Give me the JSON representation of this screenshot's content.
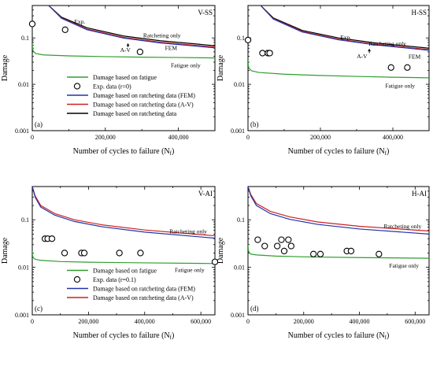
{
  "figure": {
    "panels": 4,
    "colors": {
      "fatigue": "#2e9e2e",
      "fem": "#2233aa",
      "av": "#cc2222",
      "exp_line": "#000000",
      "marker": "#000000"
    }
  },
  "chart_data": [
    {
      "id": "a",
      "type": "line",
      "title": "V-SS",
      "panel_letter": "(a)",
      "xlabel": "Number of cycles to failure (N",
      "xlabel_sub": "f",
      "xlabel_close": ")",
      "ylabel": "Damage",
      "yscale": "log",
      "xlim": [
        0,
        500000
      ],
      "ylim": [
        0.001,
        0.5
      ],
      "xticks": [
        0,
        200000,
        400000
      ],
      "xtick_labels": [
        "0",
        "200,000",
        "400,000"
      ],
      "yticks": [
        0.001,
        0.01,
        0.1
      ],
      "ytick_labels": [
        "0.001",
        "0.01",
        "0.1"
      ],
      "series": [
        {
          "key": "exp_line",
          "type": "line",
          "x": [
            45000,
            80000,
            150000,
            250000,
            350000,
            500000
          ],
          "y": [
            0.5,
            0.28,
            0.165,
            0.11,
            0.087,
            0.068
          ]
        },
        {
          "key": "av",
          "type": "line",
          "x": [
            45000,
            80000,
            150000,
            250000,
            350000,
            500000
          ],
          "y": [
            0.5,
            0.27,
            0.155,
            0.103,
            0.081,
            0.064
          ]
        },
        {
          "key": "fem",
          "type": "line",
          "x": [
            45000,
            80000,
            150000,
            250000,
            350000,
            500000
          ],
          "y": [
            0.5,
            0.265,
            0.15,
            0.099,
            0.078,
            0.061
          ]
        },
        {
          "key": "fatigue",
          "type": "line",
          "x": [
            0,
            1000,
            3000,
            10000,
            30000,
            100000,
            200000,
            300000,
            400000,
            500000
          ],
          "y": [
            0.075,
            0.058,
            0.051,
            0.046,
            0.043,
            0.041,
            0.0395,
            0.0385,
            0.0378,
            0.037
          ]
        },
        {
          "key": "exp_markers",
          "type": "scatter",
          "x": [
            0,
            90000,
            295000
          ],
          "y": [
            0.2,
            0.15,
            0.05
          ]
        }
      ],
      "annotations": [
        {
          "text": "Exp.",
          "x": 130000,
          "y": 0.23
        },
        {
          "text": "Ratcheting only",
          "x": 355000,
          "y": 0.115
        },
        {
          "text": "FEM",
          "x": 380000,
          "y": 0.062
        },
        {
          "text": "A-V",
          "x": 255000,
          "y": 0.056
        },
        {
          "text": "Fatigue only",
          "x": 420000,
          "y": 0.026
        }
      ],
      "av_arrow": {
        "x": 262000,
        "y_from": 0.063,
        "y_to": 0.076
      },
      "legend": {
        "position": "lower-left",
        "entries": [
          {
            "key": "fatigue",
            "label": "Damage based on fatigue"
          },
          {
            "key": "exp_markers",
            "label": "Exp. data (r=0)"
          },
          {
            "key": "fem",
            "label": "Damage based on ratcheting data (FEM)"
          },
          {
            "key": "av",
            "label": "Damage based on ratcheting data (A-V)"
          },
          {
            "key": "exp_line",
            "label": "Damage based on ratcheting data"
          }
        ]
      }
    },
    {
      "id": "b",
      "type": "line",
      "title": "H-SS",
      "panel_letter": "(b)",
      "xlabel": "Number of cycles to failure (N",
      "xlabel_sub": "f",
      "xlabel_close": ")",
      "ylabel": "Damage",
      "yscale": "log",
      "xlim": [
        0,
        500000
      ],
      "ylim": [
        0.001,
        0.5
      ],
      "xticks": [
        0,
        200000,
        400000
      ],
      "xtick_labels": [
        "0",
        "200,000",
        "400,000"
      ],
      "yticks": [
        0.001,
        0.01,
        0.1
      ],
      "ytick_labels": [
        "0.001",
        "0.01",
        "0.1"
      ],
      "series": [
        {
          "key": "exp_line",
          "type": "line",
          "x": [
            35000,
            70000,
            150000,
            250000,
            350000,
            500000
          ],
          "y": [
            0.5,
            0.27,
            0.145,
            0.1,
            0.078,
            0.06
          ]
        },
        {
          "key": "av",
          "type": "line",
          "x": [
            35000,
            70000,
            150000,
            250000,
            350000,
            500000
          ],
          "y": [
            0.5,
            0.26,
            0.138,
            0.094,
            0.073,
            0.056
          ]
        },
        {
          "key": "fem",
          "type": "line",
          "x": [
            35000,
            70000,
            150000,
            250000,
            350000,
            500000
          ],
          "y": [
            0.5,
            0.255,
            0.134,
            0.091,
            0.071,
            0.054
          ]
        },
        {
          "key": "fatigue",
          "type": "line",
          "x": [
            0,
            1000,
            3000,
            10000,
            30000,
            100000,
            200000,
            300000,
            400000,
            500000
          ],
          "y": [
            0.032,
            0.025,
            0.022,
            0.0195,
            0.018,
            0.0165,
            0.0155,
            0.0148,
            0.0142,
            0.0138
          ]
        },
        {
          "key": "exp_markers",
          "type": "scatter",
          "x": [
            0,
            40000,
            55000,
            60000,
            395000,
            440000
          ],
          "y": [
            0.09,
            0.047,
            0.047,
            0.047,
            0.023,
            0.023
          ]
        }
      ],
      "annotations": [
        {
          "text": "Exp.",
          "x": 270000,
          "y": 0.105
        },
        {
          "text": "Ratcheting only",
          "x": 385000,
          "y": 0.077
        },
        {
          "text": "A-V",
          "x": 315000,
          "y": 0.041
        },
        {
          "text": "FEM",
          "x": 460000,
          "y": 0.04
        },
        {
          "text": "Fatigue only",
          "x": 420000,
          "y": 0.0095
        }
      ],
      "av_arrow": {
        "x": 335000,
        "y_from": 0.047,
        "y_to": 0.058
      }
    },
    {
      "id": "c",
      "type": "line",
      "title": "V-AI",
      "panel_letter": "(c)",
      "xlabel": "Number of cycles to failure (N",
      "xlabel_sub": "f",
      "xlabel_close": ")",
      "ylabel": "Damage",
      "yscale": "log",
      "xlim": [
        0,
        650000
      ],
      "ylim": [
        0.001,
        0.5
      ],
      "xticks": [
        0,
        200000,
        400000,
        600000
      ],
      "xtick_labels": [
        "0",
        "200,000",
        "400,000",
        "600,000"
      ],
      "yticks": [
        0.001,
        0.01,
        0.1
      ],
      "ytick_labels": [
        "0.001",
        "0.01",
        "0.1"
      ],
      "series": [
        {
          "key": "av",
          "type": "line",
          "x": [
            0,
            10000,
            30000,
            80000,
            150000,
            250000,
            400000,
            650000
          ],
          "y": [
            0.5,
            0.32,
            0.2,
            0.135,
            0.1,
            0.078,
            0.061,
            0.046
          ]
        },
        {
          "key": "fem",
          "type": "line",
          "x": [
            0,
            10000,
            30000,
            80000,
            150000,
            250000,
            400000,
            650000
          ],
          "y": [
            0.5,
            0.3,
            0.185,
            0.125,
            0.092,
            0.071,
            0.055,
            0.041
          ]
        },
        {
          "key": "fatigue",
          "type": "line",
          "x": [
            0,
            1000,
            3000,
            10000,
            30000,
            100000,
            200000,
            400000,
            650000
          ],
          "y": [
            0.022,
            0.018,
            0.016,
            0.0148,
            0.014,
            0.0132,
            0.0128,
            0.0124,
            0.012
          ]
        },
        {
          "key": "exp_markers",
          "type": "scatter",
          "x": [
            45000,
            55000,
            70000,
            115000,
            175000,
            185000,
            310000,
            385000,
            650000
          ],
          "y": [
            0.04,
            0.04,
            0.04,
            0.02,
            0.02,
            0.02,
            0.02,
            0.02,
            0.013
          ]
        }
      ],
      "annotations": [
        {
          "text": "Ratcheting only",
          "x": 555000,
          "y": 0.058
        },
        {
          "text": "Fatigue only",
          "x": 560000,
          "y": 0.009
        }
      ],
      "legend": {
        "position": "lower-left",
        "entries": [
          {
            "key": "fatigue",
            "label": "Damage based on fatigue"
          },
          {
            "key": "exp_markers",
            "label": "Exp. data (r=0.1)"
          },
          {
            "key": "fem",
            "label": "Damage based on ratcheting data (FEM)"
          },
          {
            "key": "av",
            "label": "Damage based on ratcheting data (A-V)"
          }
        ]
      }
    },
    {
      "id": "d",
      "type": "line",
      "title": "H-AI",
      "panel_letter": "(d)",
      "xlabel": "Number of cycles to failure (N",
      "xlabel_sub": "f",
      "xlabel_close": ")",
      "ylabel": "Damage",
      "yscale": "log",
      "xlim": [
        0,
        650000
      ],
      "ylim": [
        0.001,
        0.5
      ],
      "xticks": [
        0,
        200000,
        400000,
        600000
      ],
      "xtick_labels": [
        "0",
        "200,000",
        "400,000",
        "600,000"
      ],
      "yticks": [
        0.001,
        0.01,
        0.1
      ],
      "ytick_labels": [
        "0.001",
        "0.01",
        "0.1"
      ],
      "series": [
        {
          "key": "av",
          "type": "line",
          "x": [
            0,
            10000,
            30000,
            80000,
            150000,
            250000,
            400000,
            650000
          ],
          "y": [
            0.5,
            0.34,
            0.22,
            0.15,
            0.115,
            0.09,
            0.073,
            0.058
          ]
        },
        {
          "key": "fem",
          "type": "line",
          "x": [
            0,
            10000,
            30000,
            80000,
            150000,
            250000,
            400000,
            650000
          ],
          "y": [
            0.5,
            0.32,
            0.2,
            0.135,
            0.102,
            0.08,
            0.064,
            0.05
          ]
        },
        {
          "key": "fatigue",
          "type": "line",
          "x": [
            0,
            1000,
            3000,
            10000,
            30000,
            100000,
            200000,
            400000,
            650000
          ],
          "y": [
            0.03,
            0.024,
            0.021,
            0.019,
            0.0182,
            0.0172,
            0.0166,
            0.016,
            0.0155
          ]
        },
        {
          "key": "exp_markers",
          "type": "scatter",
          "x": [
            35000,
            60000,
            105000,
            120000,
            130000,
            145000,
            155000,
            235000,
            260000,
            355000,
            370000,
            470000
          ],
          "y": [
            0.038,
            0.028,
            0.028,
            0.038,
            0.022,
            0.038,
            0.028,
            0.019,
            0.019,
            0.022,
            0.022,
            0.019
          ]
        }
      ],
      "annotations": [
        {
          "text": "Ratcheting only",
          "x": 555000,
          "y": 0.075
        },
        {
          "text": "Fatigue only",
          "x": 560000,
          "y": 0.011
        }
      ]
    }
  ]
}
